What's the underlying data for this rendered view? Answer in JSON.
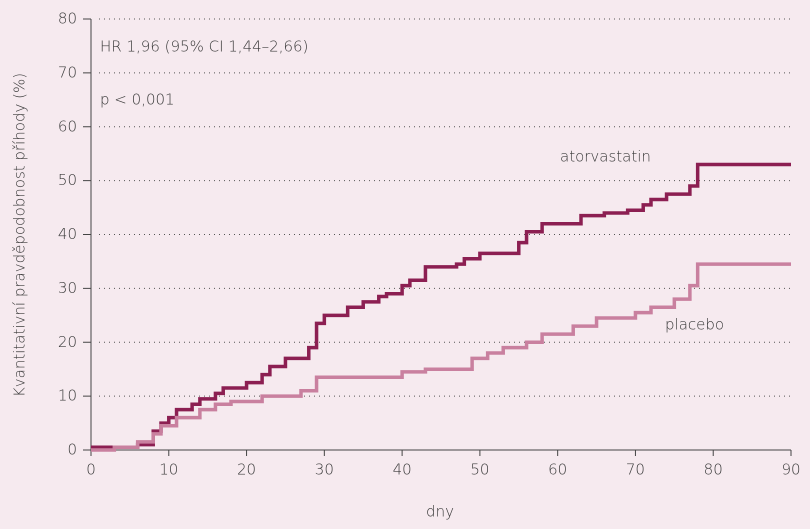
{
  "chart_data": {
    "type": "line",
    "step": "post",
    "xlabel": "dny",
    "ylabel": "Kvantitativní pravděpodobnost příhody (%)",
    "xlim": [
      0,
      90
    ],
    "ylim": [
      0,
      80
    ],
    "xticks": [
      0,
      10,
      20,
      30,
      40,
      50,
      60,
      70,
      80,
      90
    ],
    "yticks": [
      0,
      10,
      20,
      30,
      40,
      50,
      60,
      70,
      80
    ],
    "grid": true,
    "annotations": [
      "HR 1,96 (95% CI 1,44–2,66)",
      "p < 0,001"
    ],
    "series": [
      {
        "name": "atorvastatin",
        "color": "#8c1f52",
        "x": [
          0,
          6,
          8,
          9,
          10,
          11,
          13,
          14,
          16,
          17,
          20,
          22,
          23,
          25,
          28,
          29,
          30,
          33,
          35,
          37,
          38,
          40,
          41,
          43,
          47,
          48,
          50,
          55,
          56,
          58,
          63,
          66,
          69,
          71,
          72,
          74,
          77,
          78,
          90
        ],
        "values": [
          0.5,
          1,
          3.5,
          5,
          6,
          7.5,
          8.5,
          9.5,
          10.5,
          11.5,
          12.5,
          14,
          15.5,
          17,
          19,
          23.5,
          25,
          26.5,
          27.5,
          28.5,
          29,
          30.5,
          31.5,
          34,
          34.5,
          35.5,
          36.5,
          38.5,
          40.5,
          42,
          43.5,
          44,
          44.5,
          45.5,
          46.5,
          47.5,
          49,
          53,
          53
        ]
      },
      {
        "name": "placebo",
        "color": "#c9809f",
        "x": [
          0,
          3,
          6,
          8,
          9,
          11,
          14,
          16,
          18,
          22,
          27,
          29,
          40,
          43,
          49,
          51,
          53,
          56,
          58,
          62,
          65,
          70,
          72,
          75,
          77,
          78,
          90
        ],
        "values": [
          0,
          0.5,
          1.5,
          3,
          4.5,
          6,
          7.5,
          8.5,
          9,
          10,
          11,
          13.5,
          14.5,
          15,
          17,
          18,
          19,
          20,
          21.5,
          23,
          24.5,
          25.5,
          26.5,
          28,
          30.5,
          34.5,
          34.5
        ]
      }
    ]
  }
}
